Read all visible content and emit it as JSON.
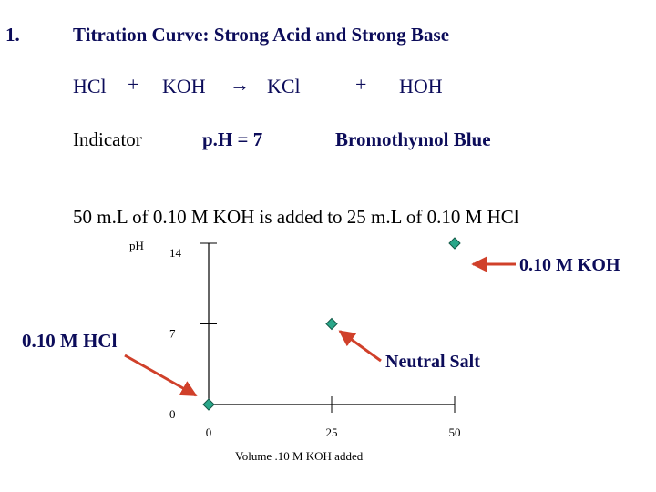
{
  "slide": {
    "number": "1.",
    "title": "Titration Curve: Strong Acid and Strong Base"
  },
  "equation": {
    "reactant1": "HCl",
    "plus1": "+",
    "reactant2": "KOH",
    "arrow": "→",
    "product1": "KCl",
    "plus2": "+",
    "product2": "HOH"
  },
  "info": {
    "indicator_label": "Indicator",
    "ph_text": "p.H = 7",
    "indicator_name": "Bromothymol Blue"
  },
  "problem_statement": "50 m.L of 0.10 M KOH is added to 25 m.L of 0.10 M HCl",
  "annotations": {
    "hcl": "0.10 M HCl",
    "koh": "0.10 M KOH",
    "neutral_salt": "Neutral Salt"
  },
  "colors": {
    "text": "#000000",
    "title": "#0c0c5a",
    "annotation": "#0c0c5a",
    "arrow": "#d0402a",
    "marker": "#2aa78a"
  },
  "chart_data": {
    "type": "scatter",
    "title": "",
    "xlabel": "Volume .10 M KOH added",
    "ylabel": "pH",
    "xlim": [
      0,
      50
    ],
    "ylim": [
      0,
      14
    ],
    "x_ticks": [
      0,
      25,
      50
    ],
    "y_ticks": [
      0,
      7,
      14
    ],
    "x_tick_labels": [
      "0",
      "25",
      "50"
    ],
    "y_tick_labels": [
      "0",
      "7",
      "14"
    ],
    "grid": false,
    "points": [
      {
        "x": 0,
        "y": 0
      },
      {
        "x": 25,
        "y": 7
      },
      {
        "x": 50,
        "y": 14
      }
    ]
  }
}
